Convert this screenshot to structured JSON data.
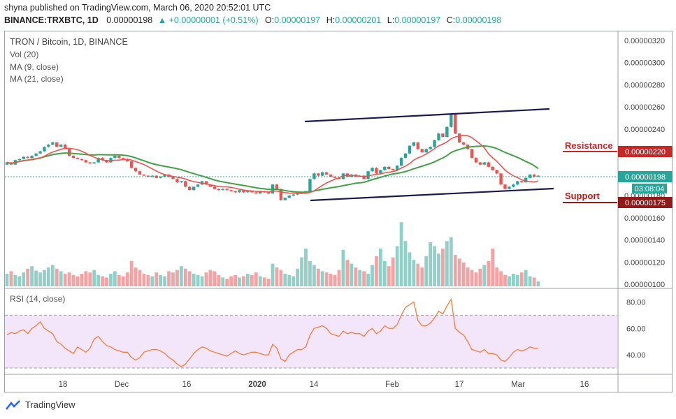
{
  "header": {
    "published": "shyna published on TradingView.com, March 06, 2020 20:52:01 UTC",
    "symbol": "BINANCE:TRXBTC, 1D",
    "price": "0.00000198",
    "change": "+0.00000001 (+0.51%)",
    "o_label": "O:",
    "o_value": "0.00000197",
    "h_label": "H:",
    "h_value": "0.00000201",
    "l_label": "L:",
    "l_value": "0.00000197",
    "c_label": "C:",
    "c_value": "0.00000198"
  },
  "legend": {
    "title": "TRON / Bitcoin, 1D, BINANCE",
    "vol": "Vol (20)",
    "ma9": "MA (9, close)",
    "ma21": "MA (21, close)",
    "rsi": "RSI (14, close)"
  },
  "annotations": {
    "resistance": "Resistance",
    "support": "Support",
    "resistance_color": "#c62828",
    "support_color": "#b71c1c"
  },
  "price_labels": {
    "current": "0.00000198",
    "countdown": "03:08:04",
    "resistance": "0.00000220",
    "support": "0.00000175"
  },
  "footer": {
    "brand": "TradingView"
  },
  "colors": {
    "up": "#26a69a",
    "down": "#ef5350",
    "ma9": "#ef5350",
    "ma21": "#43a047",
    "trend": "#1a1a4e",
    "rsi_line": "#f57c3a",
    "rsi_band": "#f1e4fb"
  },
  "chart_data": {
    "type": "candlestick",
    "price_axis": {
      "ticks": [
        1e-06,
        1.2e-06,
        1.4e-06,
        1.6e-06,
        1.8e-06,
        2e-06,
        2.2e-06,
        2.4e-06,
        2.6e-06,
        2.8e-06,
        3e-06,
        3.2e-06
      ],
      "tick_labels": [
        "0.00000100",
        "0.00000120",
        "0.00000140",
        "0.00000160",
        "0.00000180",
        "0.00000200",
        "0.00000220",
        "0.00000240",
        "0.00000260",
        "0.00000280",
        "0.00000300",
        "0.00000320"
      ]
    },
    "rsi_axis": {
      "ticks": [
        40,
        60,
        80
      ],
      "tick_labels": [
        "40.00",
        "60.00",
        "80.00"
      ],
      "band": [
        30,
        70
      ]
    },
    "x_tick_labels": [
      "18",
      "Dec",
      "16",
      "2020",
      "14",
      "Feb",
      "17",
      "Mar",
      "16"
    ],
    "close": [
      2.1e-06,
      2.08e-06,
      2.12e-06,
      2.13e-06,
      2.15e-06,
      2.14e-06,
      2.16e-06,
      2.18e-06,
      2.2e-06,
      2.24e-06,
      2.26e-06,
      2.28e-06,
      2.24e-06,
      2.26e-06,
      2.22e-06,
      2.16e-06,
      2.14e-06,
      2.13e-06,
      2.12e-06,
      2.1e-06,
      2.09e-06,
      2.1e-06,
      2.14e-06,
      2.12e-06,
      2.1e-06,
      2.14e-06,
      2.16e-06,
      2.14e-06,
      2.13e-06,
      2.11e-06,
      2.05e-06,
      2.02e-06,
      1.99e-06,
      1.98e-06,
      1.97e-06,
      1.98e-06,
      1.96e-06,
      1.97e-06,
      1.99e-06,
      1.97e-06,
      1.95e-06,
      1.92e-06,
      1.93e-06,
      1.88e-06,
      1.85e-06,
      1.88e-06,
      1.9e-06,
      1.93e-06,
      1.9e-06,
      1.88e-06,
      1.86e-06,
      1.85e-06,
      1.86e-06,
      1.85e-06,
      1.84e-06,
      1.83e-06,
      1.85e-06,
      1.83e-06,
      1.84e-06,
      1.83e-06,
      1.82e-06,
      1.84e-06,
      1.83e-06,
      1.82e-06,
      1.9e-06,
      1.86e-06,
      1.76e-06,
      1.78e-06,
      1.8e-06,
      1.81e-06,
      1.82e-06,
      1.83e-06,
      1.84e-06,
      1.95e-06,
      2e-06,
      1.98e-06,
      2.01e-06,
      1.99e-06,
      1.97e-06,
      1.96e-06,
      1.95e-06,
      2e-06,
      1.97e-06,
      1.99e-06,
      1.97e-06,
      1.98e-06,
      1.95e-06,
      2.02e-06,
      2.05e-06,
      2e-06,
      2.03e-06,
      2.06e-06,
      2.04e-06,
      2.03e-06,
      2.07e-06,
      2.14e-06,
      2.18e-06,
      2.25e-06,
      2.28e-06,
      2.22e-06,
      2.19e-06,
      2.22e-06,
      2.24e-06,
      2.3e-06,
      2.36e-06,
      2.33e-06,
      2.42e-06,
      2.54e-06,
      2.36e-06,
      2.28e-06,
      2.26e-06,
      2.22e-06,
      2.14e-06,
      2.1e-06,
      2.08e-06,
      2.1e-06,
      2.06e-06,
      2.03e-06,
      2e-06,
      1.9e-06,
      1.86e-06,
      1.88e-06,
      1.9e-06,
      1.93e-06,
      1.92e-06,
      1.96e-06,
      1.99e-06,
      1.97e-06,
      1.98e-06
    ],
    "volume": [
      20,
      24,
      18,
      16,
      22,
      28,
      32,
      25,
      22,
      26,
      30,
      34,
      28,
      24,
      20,
      22,
      18,
      16,
      20,
      24,
      22,
      26,
      18,
      16,
      14,
      20,
      24,
      18,
      16,
      22,
      40,
      30,
      26,
      20,
      18,
      16,
      22,
      18,
      16,
      24,
      22,
      26,
      32,
      28,
      24,
      20,
      18,
      16,
      22,
      26,
      24,
      18,
      14,
      12,
      16,
      18,
      14,
      16,
      20,
      18,
      22,
      16,
      14,
      12,
      36,
      30,
      26,
      20,
      18,
      16,
      28,
      46,
      60,
      40,
      34,
      28,
      24,
      22,
      20,
      18,
      26,
      58,
      42,
      36,
      30,
      26,
      24,
      20,
      34,
      48,
      60,
      40,
      32,
      46,
      64,
      102,
      72,
      54,
      42,
      36,
      30,
      48,
      70,
      64,
      52,
      60,
      72,
      78,
      50,
      44,
      38,
      30,
      26,
      22,
      28,
      34,
      40,
      60,
      30,
      24,
      18,
      16,
      20,
      18,
      22,
      26,
      16,
      14,
      8
    ],
    "ma9_color": "#ef5350",
    "ma21_color": "#43a047",
    "rsi": [
      55,
      57,
      56,
      58,
      59,
      56,
      60,
      62,
      65,
      60,
      58,
      56,
      50,
      48,
      45,
      43,
      41,
      46,
      44,
      42,
      45,
      52,
      54,
      50,
      47,
      46,
      44,
      43,
      42,
      42,
      38,
      36,
      38,
      42,
      43,
      44,
      44,
      43,
      41,
      38,
      36,
      33,
      31,
      33,
      37,
      41,
      44,
      46,
      45,
      43,
      42,
      41,
      40,
      39,
      41,
      43,
      41,
      40,
      41,
      42,
      42,
      41,
      40,
      40,
      48,
      45,
      37,
      35,
      40,
      42,
      44,
      44,
      46,
      55,
      60,
      61,
      62,
      60,
      56,
      55,
      54,
      58,
      56,
      57,
      56,
      56,
      54,
      58,
      60,
      56,
      58,
      62,
      60,
      60,
      63,
      70,
      76,
      78,
      80,
      66,
      62,
      62,
      64,
      68,
      73,
      71,
      77,
      82,
      60,
      57,
      55,
      50,
      44,
      43,
      42,
      44,
      41,
      41,
      40,
      36,
      35,
      38,
      42,
      44,
      43,
      44,
      46,
      45,
      45
    ]
  }
}
